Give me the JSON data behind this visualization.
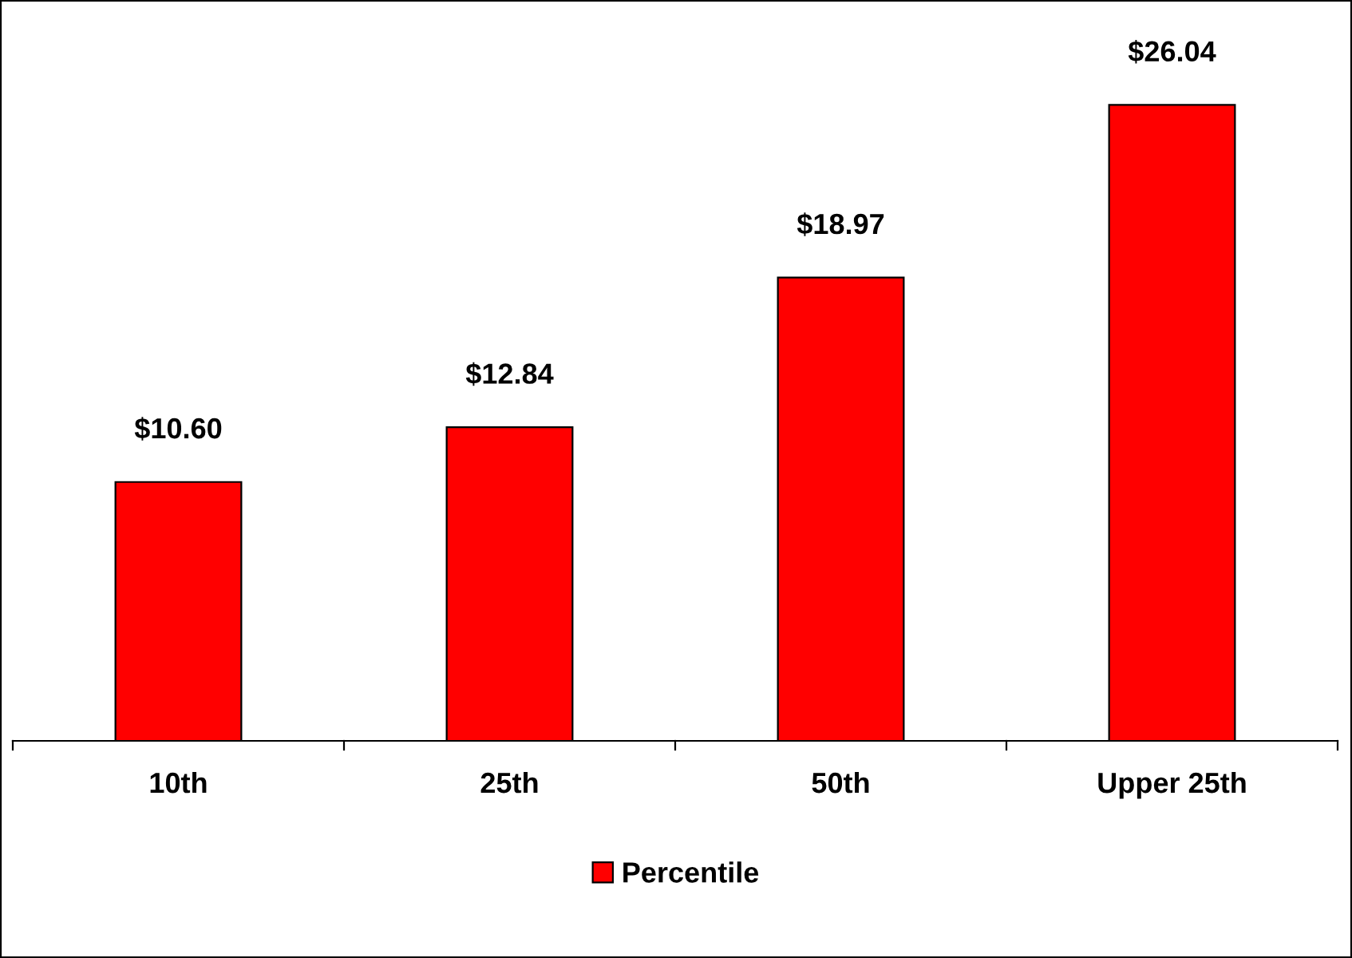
{
  "chart_data": {
    "type": "bar",
    "categories": [
      "10th",
      "25th",
      "50th",
      "Upper 25th"
    ],
    "series": [
      {
        "name": "Percentile",
        "color": "#ff0000",
        "values": [
          10.6,
          12.84,
          18.97,
          26.04
        ],
        "value_labels": [
          "$10.60",
          "$12.84",
          "$18.97",
          "$26.04"
        ]
      }
    ],
    "legend": "bottom",
    "grid": false
  }
}
